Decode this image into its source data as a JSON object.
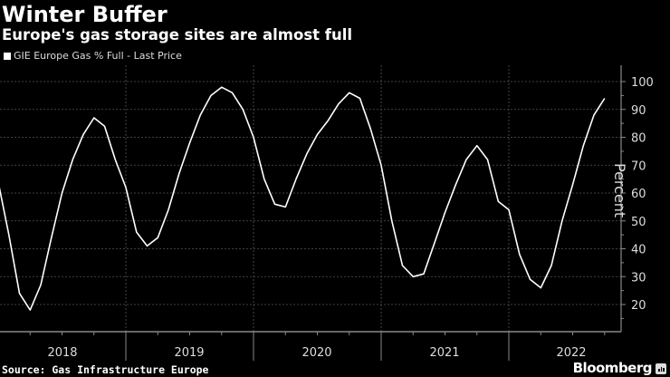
{
  "header": {
    "title": "Winter Buffer",
    "subtitle": "Europe's gas storage sites are almost full",
    "legend_label": "GIE Europe Gas % Full - Last Price"
  },
  "footer": {
    "source": "Source: Gas Infrastructure Europe",
    "brand": "Bloomberg"
  },
  "colors": {
    "background": "#000000",
    "line": "#ffffff",
    "grid": "#555555",
    "axis": "#888888"
  },
  "chart_data": {
    "type": "line",
    "title": "Winter Buffer",
    "subtitle": "Europe's gas storage sites are almost full",
    "xlabel": "",
    "ylabel": "Percent",
    "ylim": [
      10,
      103
    ],
    "yticks": [
      20,
      30,
      40,
      50,
      60,
      70,
      80,
      90,
      100
    ],
    "x_tick_labels": [
      "2018",
      "2019",
      "2020",
      "2021",
      "2022"
    ],
    "grid": true,
    "legend_position": "top-left",
    "series": [
      {
        "name": "GIE Europe Gas % Full - Last Price",
        "points": [
          {
            "date": "2018-01",
            "value": 64
          },
          {
            "date": "2018-02",
            "value": 45
          },
          {
            "date": "2018-03",
            "value": 24
          },
          {
            "date": "2018-04",
            "value": 18
          },
          {
            "date": "2018-05",
            "value": 27
          },
          {
            "date": "2018-06",
            "value": 44
          },
          {
            "date": "2018-07",
            "value": 60
          },
          {
            "date": "2018-08",
            "value": 72
          },
          {
            "date": "2018-09",
            "value": 81
          },
          {
            "date": "2018-10",
            "value": 87
          },
          {
            "date": "2018-11",
            "value": 84
          },
          {
            "date": "2018-12",
            "value": 72
          },
          {
            "date": "2019-01",
            "value": 62
          },
          {
            "date": "2019-02",
            "value": 46
          },
          {
            "date": "2019-03",
            "value": 41
          },
          {
            "date": "2019-04",
            "value": 44
          },
          {
            "date": "2019-05",
            "value": 54
          },
          {
            "date": "2019-06",
            "value": 67
          },
          {
            "date": "2019-07",
            "value": 78
          },
          {
            "date": "2019-08",
            "value": 88
          },
          {
            "date": "2019-09",
            "value": 95
          },
          {
            "date": "2019-10",
            "value": 98
          },
          {
            "date": "2019-11",
            "value": 96
          },
          {
            "date": "2019-12",
            "value": 90
          },
          {
            "date": "2020-01",
            "value": 80
          },
          {
            "date": "2020-02",
            "value": 65
          },
          {
            "date": "2020-03",
            "value": 56
          },
          {
            "date": "2020-04",
            "value": 55
          },
          {
            "date": "2020-05",
            "value": 65
          },
          {
            "date": "2020-06",
            "value": 74
          },
          {
            "date": "2020-07",
            "value": 81
          },
          {
            "date": "2020-08",
            "value": 86
          },
          {
            "date": "2020-09",
            "value": 92
          },
          {
            "date": "2020-10",
            "value": 96
          },
          {
            "date": "2020-11",
            "value": 94
          },
          {
            "date": "2020-12",
            "value": 83
          },
          {
            "date": "2021-01",
            "value": 70
          },
          {
            "date": "2021-02",
            "value": 50
          },
          {
            "date": "2021-03",
            "value": 34
          },
          {
            "date": "2021-04",
            "value": 30
          },
          {
            "date": "2021-05",
            "value": 31
          },
          {
            "date": "2021-06",
            "value": 42
          },
          {
            "date": "2021-07",
            "value": 53
          },
          {
            "date": "2021-08",
            "value": 63
          },
          {
            "date": "2021-09",
            "value": 72
          },
          {
            "date": "2021-10",
            "value": 77
          },
          {
            "date": "2021-11",
            "value": 72
          },
          {
            "date": "2021-12",
            "value": 57
          },
          {
            "date": "2022-01",
            "value": 54
          },
          {
            "date": "2022-02",
            "value": 38
          },
          {
            "date": "2022-03",
            "value": 29
          },
          {
            "date": "2022-04",
            "value": 26
          },
          {
            "date": "2022-05",
            "value": 34
          },
          {
            "date": "2022-06",
            "value": 50
          },
          {
            "date": "2022-07",
            "value": 63
          },
          {
            "date": "2022-08",
            "value": 77
          },
          {
            "date": "2022-09",
            "value": 88
          },
          {
            "date": "2022-10",
            "value": 94
          }
        ]
      }
    ]
  }
}
